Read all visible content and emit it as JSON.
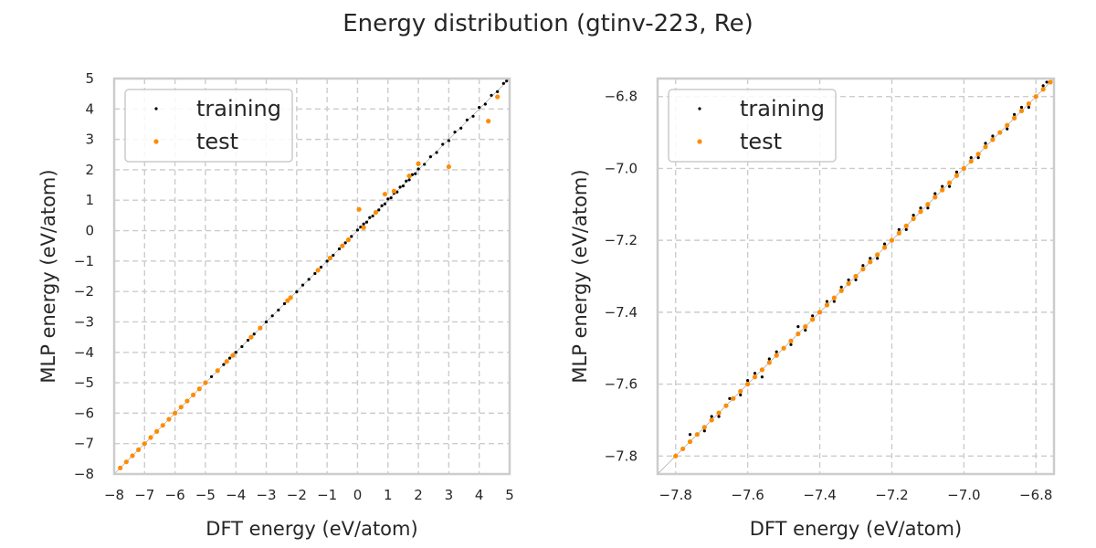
{
  "figure": {
    "title": "Energy distribution (gtinv-223, Re)"
  },
  "colors": {
    "training": "#000000",
    "test": "#ff8c00",
    "grid": "#cccccc",
    "frame": "#cccccc",
    "diagonal": "#999999"
  },
  "chart_data": [
    {
      "type": "scatter",
      "xlabel": "DFT energy (eV/atom)",
      "ylabel": "MLP energy (eV/atom)",
      "xlim": [
        -8,
        5
      ],
      "ylim": [
        -8,
        5
      ],
      "xticks": [
        -8,
        -7,
        -6,
        -5,
        -4,
        -3,
        -2,
        -1,
        0,
        1,
        2,
        3,
        4,
        5
      ],
      "yticks": [
        -8,
        -7,
        -6,
        -5,
        -4,
        -3,
        -2,
        -1,
        0,
        1,
        2,
        3,
        4,
        5
      ],
      "xtick_labels": [
        "−8",
        "−7",
        "−6",
        "−5",
        "−4",
        "−3",
        "−2",
        "−1",
        "0",
        "1",
        "2",
        "3",
        "4",
        "5"
      ],
      "ytick_labels": [
        "−8",
        "−7",
        "−6",
        "−5",
        "−4",
        "−3",
        "−2",
        "−1",
        "0",
        "1",
        "2",
        "3",
        "4",
        "5"
      ],
      "grid": true,
      "legend": "top-left",
      "series": [
        {
          "name": "training",
          "marker_size": 1.6,
          "points": [
            [
              -7.8,
              -7.79
            ],
            [
              -7.6,
              -7.61
            ],
            [
              -7.4,
              -7.4
            ],
            [
              -7.2,
              -7.21
            ],
            [
              -7.0,
              -6.99
            ],
            [
              -6.8,
              -6.8
            ],
            [
              -6.6,
              -6.61
            ],
            [
              -6.4,
              -6.4
            ],
            [
              -6.2,
              -6.2
            ],
            [
              -6.0,
              -6.01
            ],
            [
              -5.8,
              -5.8
            ],
            [
              -5.6,
              -5.6
            ],
            [
              -5.4,
              -5.41
            ],
            [
              -5.2,
              -5.2
            ],
            [
              -5.0,
              -5.0
            ],
            [
              -4.8,
              -4.8
            ],
            [
              -4.6,
              -4.61
            ],
            [
              -4.4,
              -4.4
            ],
            [
              -4.2,
              -4.19
            ],
            [
              -4.0,
              -4.0
            ],
            [
              -3.8,
              -3.81
            ],
            [
              -3.6,
              -3.6
            ],
            [
              -3.4,
              -3.4
            ],
            [
              -3.2,
              -3.21
            ],
            [
              -3.0,
              -3.0
            ],
            [
              -2.8,
              -2.8
            ],
            [
              -2.6,
              -2.61
            ],
            [
              -2.4,
              -2.4
            ],
            [
              -2.2,
              -2.2
            ],
            [
              -2.0,
              -2.01
            ],
            [
              -1.8,
              -1.79
            ],
            [
              -1.6,
              -1.6
            ],
            [
              -1.4,
              -1.41
            ],
            [
              -1.2,
              -1.2
            ],
            [
              -1.0,
              -1.0
            ],
            [
              -0.8,
              -0.81
            ],
            [
              -0.6,
              -0.6
            ],
            [
              -0.4,
              -0.4
            ],
            [
              -0.2,
              -0.19
            ],
            [
              0.0,
              0.02
            ],
            [
              0.1,
              0.12
            ],
            [
              0.2,
              0.22
            ],
            [
              0.3,
              0.28
            ],
            [
              0.4,
              0.43
            ],
            [
              0.5,
              0.48
            ],
            [
              0.6,
              0.62
            ],
            [
              0.7,
              0.68
            ],
            [
              0.8,
              0.82
            ],
            [
              0.9,
              0.88
            ],
            [
              1.0,
              1.04
            ],
            [
              1.1,
              1.08
            ],
            [
              1.2,
              1.23
            ],
            [
              1.3,
              1.27
            ],
            [
              1.4,
              1.43
            ],
            [
              1.5,
              1.47
            ],
            [
              1.6,
              1.63
            ],
            [
              1.7,
              1.67
            ],
            [
              1.8,
              1.84
            ],
            [
              1.9,
              1.87
            ],
            [
              2.0,
              2.03
            ],
            [
              2.2,
              2.18
            ],
            [
              2.4,
              2.43
            ],
            [
              2.6,
              2.57
            ],
            [
              2.8,
              2.84
            ],
            [
              3.0,
              2.96
            ],
            [
              3.2,
              3.24
            ],
            [
              3.4,
              3.37
            ],
            [
              3.6,
              3.64
            ],
            [
              3.8,
              3.76
            ],
            [
              4.0,
              4.05
            ],
            [
              4.2,
              4.16
            ],
            [
              4.4,
              4.45
            ],
            [
              4.6,
              4.57
            ],
            [
              4.8,
              4.84
            ],
            [
              4.9,
              4.92
            ]
          ]
        },
        {
          "name": "test",
          "marker_size": 2.6,
          "points": [
            [
              -7.8,
              -7.8
            ],
            [
              -7.6,
              -7.6
            ],
            [
              -7.4,
              -7.4
            ],
            [
              -7.2,
              -7.2
            ],
            [
              -7.0,
              -7.0
            ],
            [
              -6.8,
              -6.8
            ],
            [
              -6.6,
              -6.6
            ],
            [
              -6.4,
              -6.4
            ],
            [
              -6.2,
              -6.2
            ],
            [
              -6.0,
              -6.0
            ],
            [
              -5.8,
              -5.8
            ],
            [
              -5.6,
              -5.6
            ],
            [
              -5.4,
              -5.4
            ],
            [
              -5.2,
              -5.2
            ],
            [
              -5.0,
              -5.0
            ],
            [
              -4.6,
              -4.6
            ],
            [
              -4.3,
              -4.3
            ],
            [
              -4.1,
              -4.1
            ],
            [
              -3.5,
              -3.5
            ],
            [
              -3.2,
              -3.2
            ],
            [
              -2.3,
              -2.3
            ],
            [
              -2.2,
              -2.2
            ],
            [
              -1.3,
              -1.3
            ],
            [
              -0.9,
              -0.9
            ],
            [
              -0.5,
              -0.5
            ],
            [
              -0.3,
              -0.3
            ],
            [
              0.05,
              0.7
            ],
            [
              0.2,
              0.1
            ],
            [
              0.6,
              0.6
            ],
            [
              0.9,
              1.2
            ],
            [
              1.2,
              1.3
            ],
            [
              1.7,
              1.8
            ],
            [
              2.0,
              2.2
            ],
            [
              3.0,
              2.1
            ],
            [
              4.3,
              3.6
            ],
            [
              4.6,
              4.4
            ]
          ]
        }
      ]
    },
    {
      "type": "scatter",
      "xlabel": "DFT energy (eV/atom)",
      "ylabel": "MLP energy (eV/atom)",
      "xlim": [
        -7.85,
        -6.75
      ],
      "ylim": [
        -7.85,
        -6.75
      ],
      "xticks": [
        -7.8,
        -7.6,
        -7.4,
        -7.2,
        -7.0,
        -6.8
      ],
      "yticks": [
        -7.8,
        -7.6,
        -7.4,
        -7.2,
        -7.0,
        -6.8
      ],
      "xtick_labels": [
        "−7.8",
        "−7.6",
        "−7.4",
        "−7.2",
        "−7.0",
        "−6.8"
      ],
      "ytick_labels": [
        "−7.8",
        "−7.6",
        "−7.4",
        "−7.2",
        "−7.0",
        "−6.8"
      ],
      "grid": true,
      "legend": "top-left",
      "series": [
        {
          "name": "training",
          "marker_size": 1.6,
          "points": [
            [
              -7.8,
              -7.8
            ],
            [
              -7.76,
              -7.74
            ],
            [
              -7.72,
              -7.73
            ],
            [
              -7.7,
              -7.69
            ],
            [
              -7.68,
              -7.69
            ],
            [
              -7.65,
              -7.64
            ],
            [
              -7.62,
              -7.63
            ],
            [
              -7.6,
              -7.59
            ],
            [
              -7.58,
              -7.57
            ],
            [
              -7.56,
              -7.58
            ],
            [
              -7.54,
              -7.53
            ],
            [
              -7.52,
              -7.51
            ],
            [
              -7.5,
              -7.5
            ],
            [
              -7.48,
              -7.49
            ],
            [
              -7.46,
              -7.44
            ],
            [
              -7.44,
              -7.45
            ],
            [
              -7.42,
              -7.41
            ],
            [
              -7.4,
              -7.4
            ],
            [
              -7.38,
              -7.37
            ],
            [
              -7.36,
              -7.37
            ],
            [
              -7.34,
              -7.33
            ],
            [
              -7.32,
              -7.31
            ],
            [
              -7.3,
              -7.31
            ],
            [
              -7.28,
              -7.27
            ],
            [
              -7.26,
              -7.25
            ],
            [
              -7.24,
              -7.25
            ],
            [
              -7.22,
              -7.21
            ],
            [
              -7.2,
              -7.2
            ],
            [
              -7.18,
              -7.17
            ],
            [
              -7.16,
              -7.17
            ],
            [
              -7.14,
              -7.13
            ],
            [
              -7.12,
              -7.11
            ],
            [
              -7.1,
              -7.11
            ],
            [
              -7.08,
              -7.07
            ],
            [
              -7.06,
              -7.05
            ],
            [
              -7.04,
              -7.05
            ],
            [
              -7.02,
              -7.01
            ],
            [
              -7.0,
              -7.0
            ],
            [
              -6.98,
              -6.97
            ],
            [
              -6.96,
              -6.97
            ],
            [
              -6.94,
              -6.93
            ],
            [
              -6.92,
              -6.91
            ],
            [
              -6.9,
              -6.9
            ],
            [
              -6.88,
              -6.89
            ],
            [
              -6.86,
              -6.85
            ],
            [
              -6.84,
              -6.83
            ],
            [
              -6.82,
              -6.83
            ],
            [
              -6.8,
              -6.8
            ],
            [
              -6.78,
              -6.77
            ],
            [
              -6.77,
              -6.76
            ]
          ]
        },
        {
          "name": "test",
          "marker_size": 2.6,
          "points": [
            [
              -7.8,
              -7.8
            ],
            [
              -7.78,
              -7.78
            ],
            [
              -7.76,
              -7.76
            ],
            [
              -7.74,
              -7.74
            ],
            [
              -7.72,
              -7.72
            ],
            [
              -7.7,
              -7.7
            ],
            [
              -7.68,
              -7.68
            ],
            [
              -7.66,
              -7.66
            ],
            [
              -7.64,
              -7.64
            ],
            [
              -7.62,
              -7.62
            ],
            [
              -7.6,
              -7.6
            ],
            [
              -7.58,
              -7.58
            ],
            [
              -7.56,
              -7.56
            ],
            [
              -7.54,
              -7.54
            ],
            [
              -7.52,
              -7.52
            ],
            [
              -7.5,
              -7.5
            ],
            [
              -7.48,
              -7.48
            ],
            [
              -7.46,
              -7.46
            ],
            [
              -7.44,
              -7.44
            ],
            [
              -7.42,
              -7.42
            ],
            [
              -7.4,
              -7.4
            ],
            [
              -7.38,
              -7.38
            ],
            [
              -7.36,
              -7.36
            ],
            [
              -7.34,
              -7.34
            ],
            [
              -7.32,
              -7.32
            ],
            [
              -7.3,
              -7.3
            ],
            [
              -7.28,
              -7.28
            ],
            [
              -7.26,
              -7.26
            ],
            [
              -7.24,
              -7.24
            ],
            [
              -7.22,
              -7.22
            ],
            [
              -7.2,
              -7.2
            ],
            [
              -7.18,
              -7.18
            ],
            [
              -7.16,
              -7.16
            ],
            [
              -7.14,
              -7.14
            ],
            [
              -7.12,
              -7.12
            ],
            [
              -7.1,
              -7.1
            ],
            [
              -7.08,
              -7.08
            ],
            [
              -7.06,
              -7.06
            ],
            [
              -7.04,
              -7.04
            ],
            [
              -7.02,
              -7.02
            ],
            [
              -7.0,
              -7.0
            ],
            [
              -6.98,
              -6.98
            ],
            [
              -6.96,
              -6.96
            ],
            [
              -6.94,
              -6.94
            ],
            [
              -6.92,
              -6.92
            ],
            [
              -6.9,
              -6.9
            ],
            [
              -6.88,
              -6.88
            ],
            [
              -6.86,
              -6.86
            ],
            [
              -6.84,
              -6.84
            ],
            [
              -6.82,
              -6.82
            ],
            [
              -6.8,
              -6.8
            ],
            [
              -6.78,
              -6.78
            ],
            [
              -6.76,
              -6.76
            ]
          ]
        }
      ]
    }
  ]
}
